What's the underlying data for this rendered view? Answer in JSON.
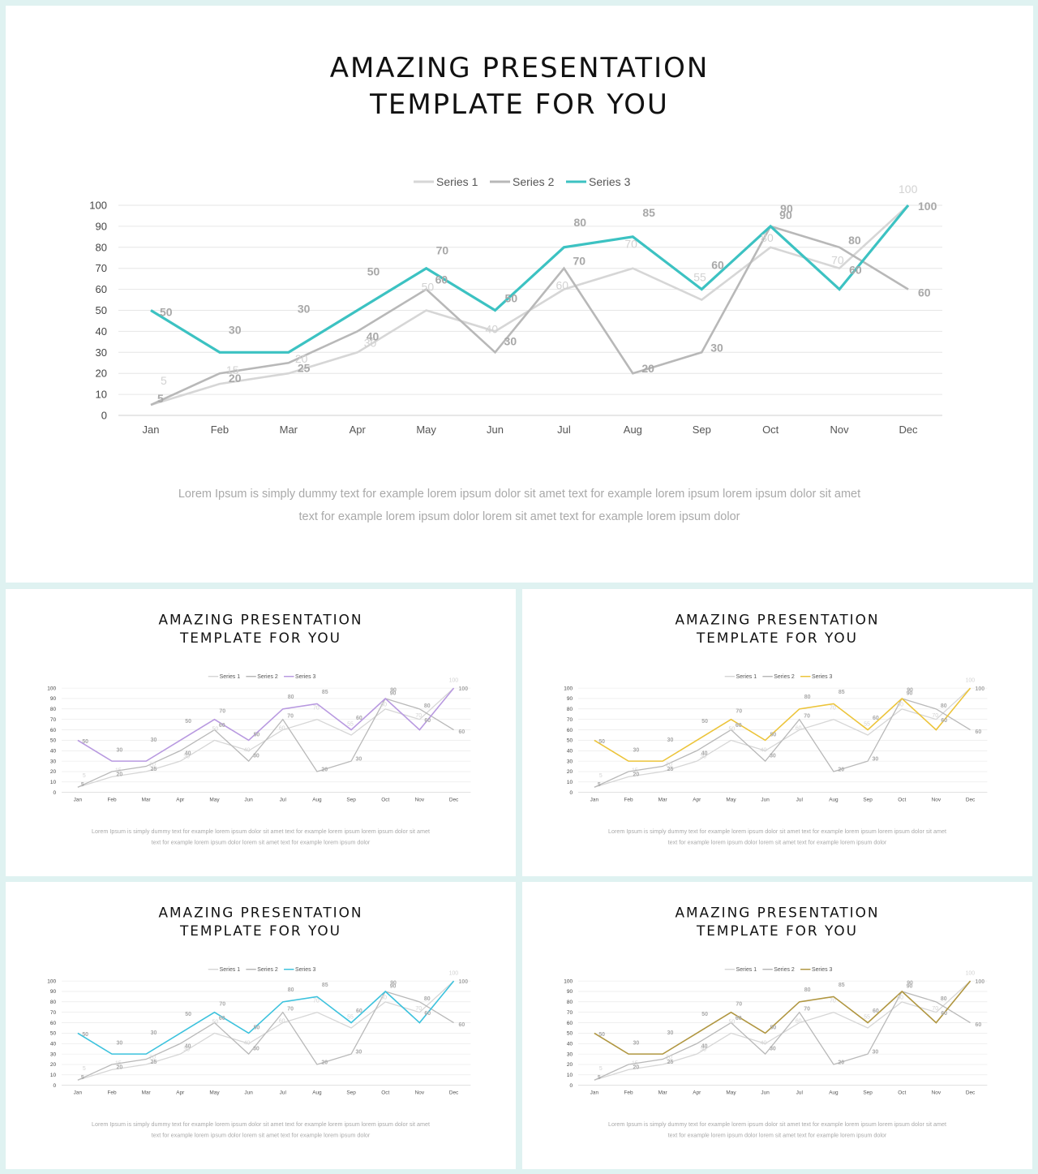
{
  "title_line1": "AMAZING PRESENTATION",
  "title_line2": "TEMPLATE FOR YOU",
  "description_line1": "Lorem Ipsum is simply dummy  text for example lorem ipsum dolor  sit amet text for example lorem  ipsum lorem  ipsum dolor sit amet",
  "description_line2": "text for example lorem ipsum dolor lorem  sit amet text for example lorem  ipsum dolor",
  "slide_accents": [
    "#3cc2c2",
    "#b899e0",
    "#ecc43a",
    "#3cc2dd",
    "#b09640"
  ],
  "series_colors": {
    "series1": "#d6d6d6",
    "series2": "#b8b8b8"
  },
  "chart_data": {
    "type": "line",
    "categories": [
      "Jan",
      "Feb",
      "Mar",
      "Apr",
      "May",
      "Jun",
      "Jul",
      "Aug",
      "Sep",
      "Oct",
      "Nov",
      "Dec"
    ],
    "series": [
      {
        "name": "Series 1",
        "values": [
          5,
          15,
          20,
          30,
          50,
          40,
          60,
          70,
          55,
          80,
          70,
          100
        ]
      },
      {
        "name": "Series 2",
        "values": [
          5,
          20,
          25,
          40,
          60,
          30,
          70,
          20,
          30,
          90,
          80,
          60
        ]
      },
      {
        "name": "Series 3",
        "values": [
          50,
          30,
          30,
          50,
          70,
          50,
          80,
          85,
          60,
          90,
          60,
          100
        ]
      }
    ],
    "yticks": [
      "0",
      "10",
      "20",
      "30",
      "40",
      "50",
      "60",
      "70",
      "80",
      "90",
      "100"
    ],
    "ylim": [
      0,
      100
    ],
    "grid": true,
    "legend": "top-center",
    "data_labels": true
  }
}
